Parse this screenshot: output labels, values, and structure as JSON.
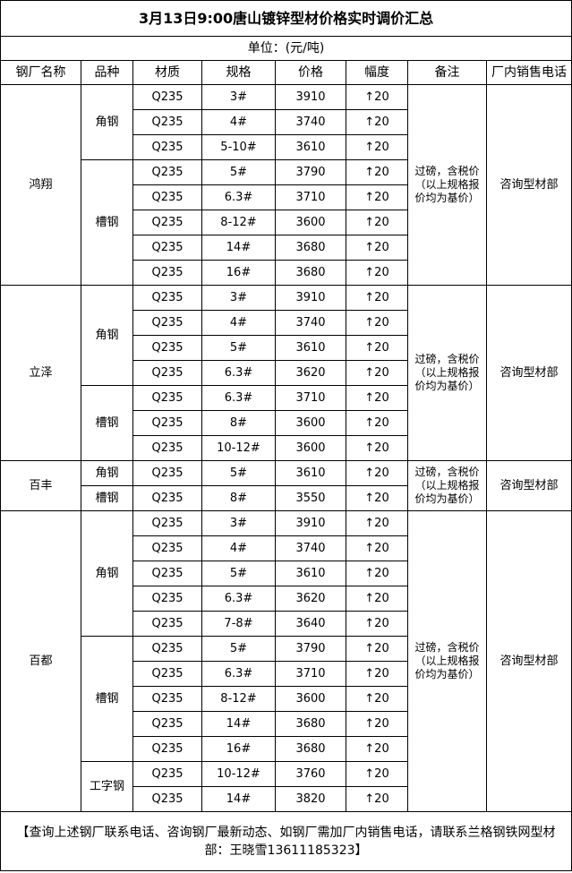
{
  "title": "3月13日9:00唐山镀锌型材价格实时调价汇总",
  "unit": "单位：(元/吨)",
  "headers": [
    "钢厂名称",
    "品种",
    "材质",
    "规格",
    "价格",
    "幅度",
    "备注",
    "厂内销售电话"
  ],
  "change_icon": "arrow-up-icon",
  "mills": [
    {
      "name": "鸿翔",
      "note": "过磅，含税价（以上规格报价均为基价）",
      "phone": "咨询型材部",
      "varieties": [
        {
          "name": "角钢",
          "rows": [
            [
              "Q235",
              "3#",
              "3910",
              "20"
            ],
            [
              "Q235",
              "4#",
              "3740",
              "20"
            ],
            [
              "Q235",
              "5-10#",
              "3610",
              "20"
            ]
          ]
        },
        {
          "name": "槽钢",
          "rows": [
            [
              "Q235",
              "5#",
              "3790",
              "20"
            ],
            [
              "Q235",
              "6.3#",
              "3710",
              "20"
            ],
            [
              "Q235",
              "8-12#",
              "3600",
              "20"
            ],
            [
              "Q235",
              "14#",
              "3680",
              "20"
            ],
            [
              "Q235",
              "16#",
              "3680",
              "20"
            ]
          ]
        }
      ]
    },
    {
      "name": "立泽",
      "note": "过磅，含税价（以上规格报价均为基价）",
      "phone": "咨询型材部",
      "varieties": [
        {
          "name": "角钢",
          "rows": [
            [
              "Q235",
              "3#",
              "3910",
              "20"
            ],
            [
              "Q235",
              "4#",
              "3740",
              "20"
            ],
            [
              "Q235",
              "5#",
              "3610",
              "20"
            ],
            [
              "Q235",
              "6.3#",
              "3620",
              "20"
            ]
          ]
        },
        {
          "name": "槽钢",
          "rows": [
            [
              "Q235",
              "6.3#",
              "3710",
              "20"
            ],
            [
              "Q235",
              "8#",
              "3600",
              "20"
            ],
            [
              "Q235",
              "10-12#",
              "3600",
              "20"
            ]
          ]
        }
      ]
    },
    {
      "name": "百丰",
      "note": "过磅，含税价（以上规格报价均为基价）",
      "phone": "咨询型材部",
      "varieties": [
        {
          "name": "角钢",
          "rows": [
            [
              "Q235",
              "5#",
              "3610",
              "20"
            ]
          ]
        },
        {
          "name": "槽钢",
          "rows": [
            [
              "Q235",
              "8#",
              "3550",
              "20"
            ]
          ]
        }
      ]
    },
    {
      "name": "百都",
      "note": "过磅，含税价（以上规格报价均为基价）",
      "phone": "咨询型材部",
      "varieties": [
        {
          "name": "角钢",
          "rows": [
            [
              "Q235",
              "3#",
              "3910",
              "20"
            ],
            [
              "Q235",
              "4#",
              "3740",
              "20"
            ],
            [
              "Q235",
              "5#",
              "3610",
              "20"
            ],
            [
              "Q235",
              "6.3#",
              "3620",
              "20"
            ],
            [
              "Q235",
              "7-8#",
              "3640",
              "20"
            ]
          ]
        },
        {
          "name": "槽钢",
          "rows": [
            [
              "Q235",
              "5#",
              "3790",
              "20"
            ],
            [
              "Q235",
              "6.3#",
              "3710",
              "20"
            ],
            [
              "Q235",
              "8-12#",
              "3600",
              "20"
            ],
            [
              "Q235",
              "14#",
              "3680",
              "20"
            ],
            [
              "Q235",
              "16#",
              "3680",
              "20"
            ]
          ]
        },
        {
          "name": "工字钢",
          "rows": [
            [
              "Q235",
              "10-12#",
              "3760",
              "20"
            ],
            [
              "Q235",
              "14#",
              "3820",
              "20"
            ]
          ]
        }
      ]
    }
  ],
  "footer": "【查询上述钢厂联系电话、咨询钢厂最新动态、如钢厂需加厂内销售电话，请联系兰格钢铁网型材部：王晓雪13611185323】"
}
